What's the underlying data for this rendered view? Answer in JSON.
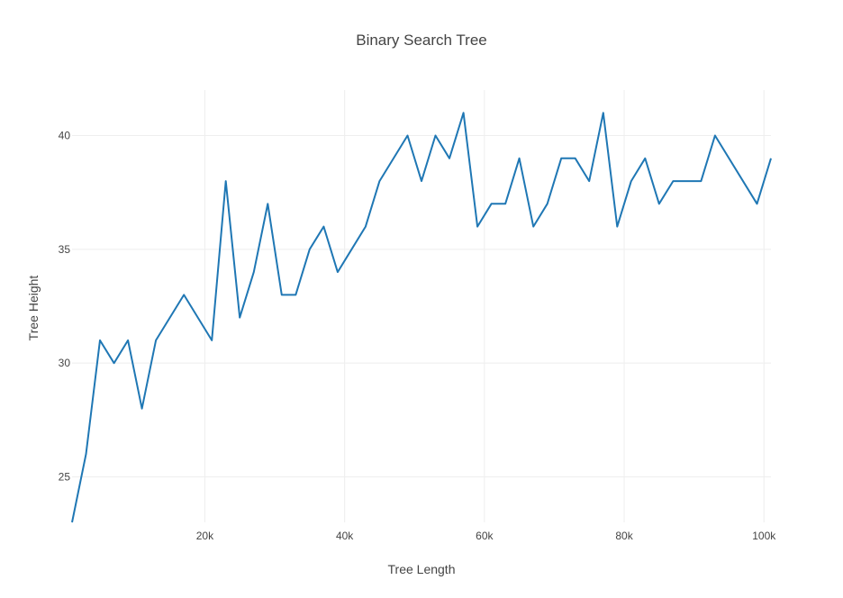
{
  "chart_data": {
    "type": "line",
    "title": "Binary Search Tree",
    "xlabel": "Tree Length",
    "ylabel": "Tree Height",
    "xlim": [
      1000,
      101000
    ],
    "ylim": [
      23,
      42
    ],
    "grid": true,
    "x_ticks": [
      {
        "value": 20000,
        "label": "20k"
      },
      {
        "value": 40000,
        "label": "40k"
      },
      {
        "value": 60000,
        "label": "60k"
      },
      {
        "value": 80000,
        "label": "80k"
      },
      {
        "value": 100000,
        "label": "100k"
      }
    ],
    "y_ticks": [
      {
        "value": 25,
        "label": "25"
      },
      {
        "value": 30,
        "label": "30"
      },
      {
        "value": 35,
        "label": "35"
      },
      {
        "value": 40,
        "label": "40"
      }
    ],
    "series": [
      {
        "color": "#1f77b4",
        "x": [
          1000,
          3000,
          5000,
          7000,
          9000,
          11000,
          13000,
          17000,
          21000,
          23000,
          25000,
          27000,
          29000,
          31000,
          33000,
          35000,
          37000,
          39000,
          43000,
          45000,
          49000,
          51000,
          53000,
          55000,
          57000,
          59000,
          61000,
          63000,
          65000,
          67000,
          69000,
          71000,
          73000,
          75000,
          77000,
          79000,
          81000,
          83000,
          85000,
          87000,
          89000,
          91000,
          93000,
          99000,
          101000
        ],
        "y": [
          23,
          26,
          31,
          30,
          31,
          28,
          31,
          33,
          31,
          38,
          32,
          34,
          37,
          33,
          33,
          35,
          36,
          34,
          36,
          38,
          40,
          38,
          40,
          39,
          41,
          36,
          37,
          37,
          39,
          36,
          37,
          39,
          39,
          38,
          41,
          36,
          38,
          39,
          37,
          38,
          38,
          38,
          40,
          37,
          39
        ]
      }
    ]
  }
}
